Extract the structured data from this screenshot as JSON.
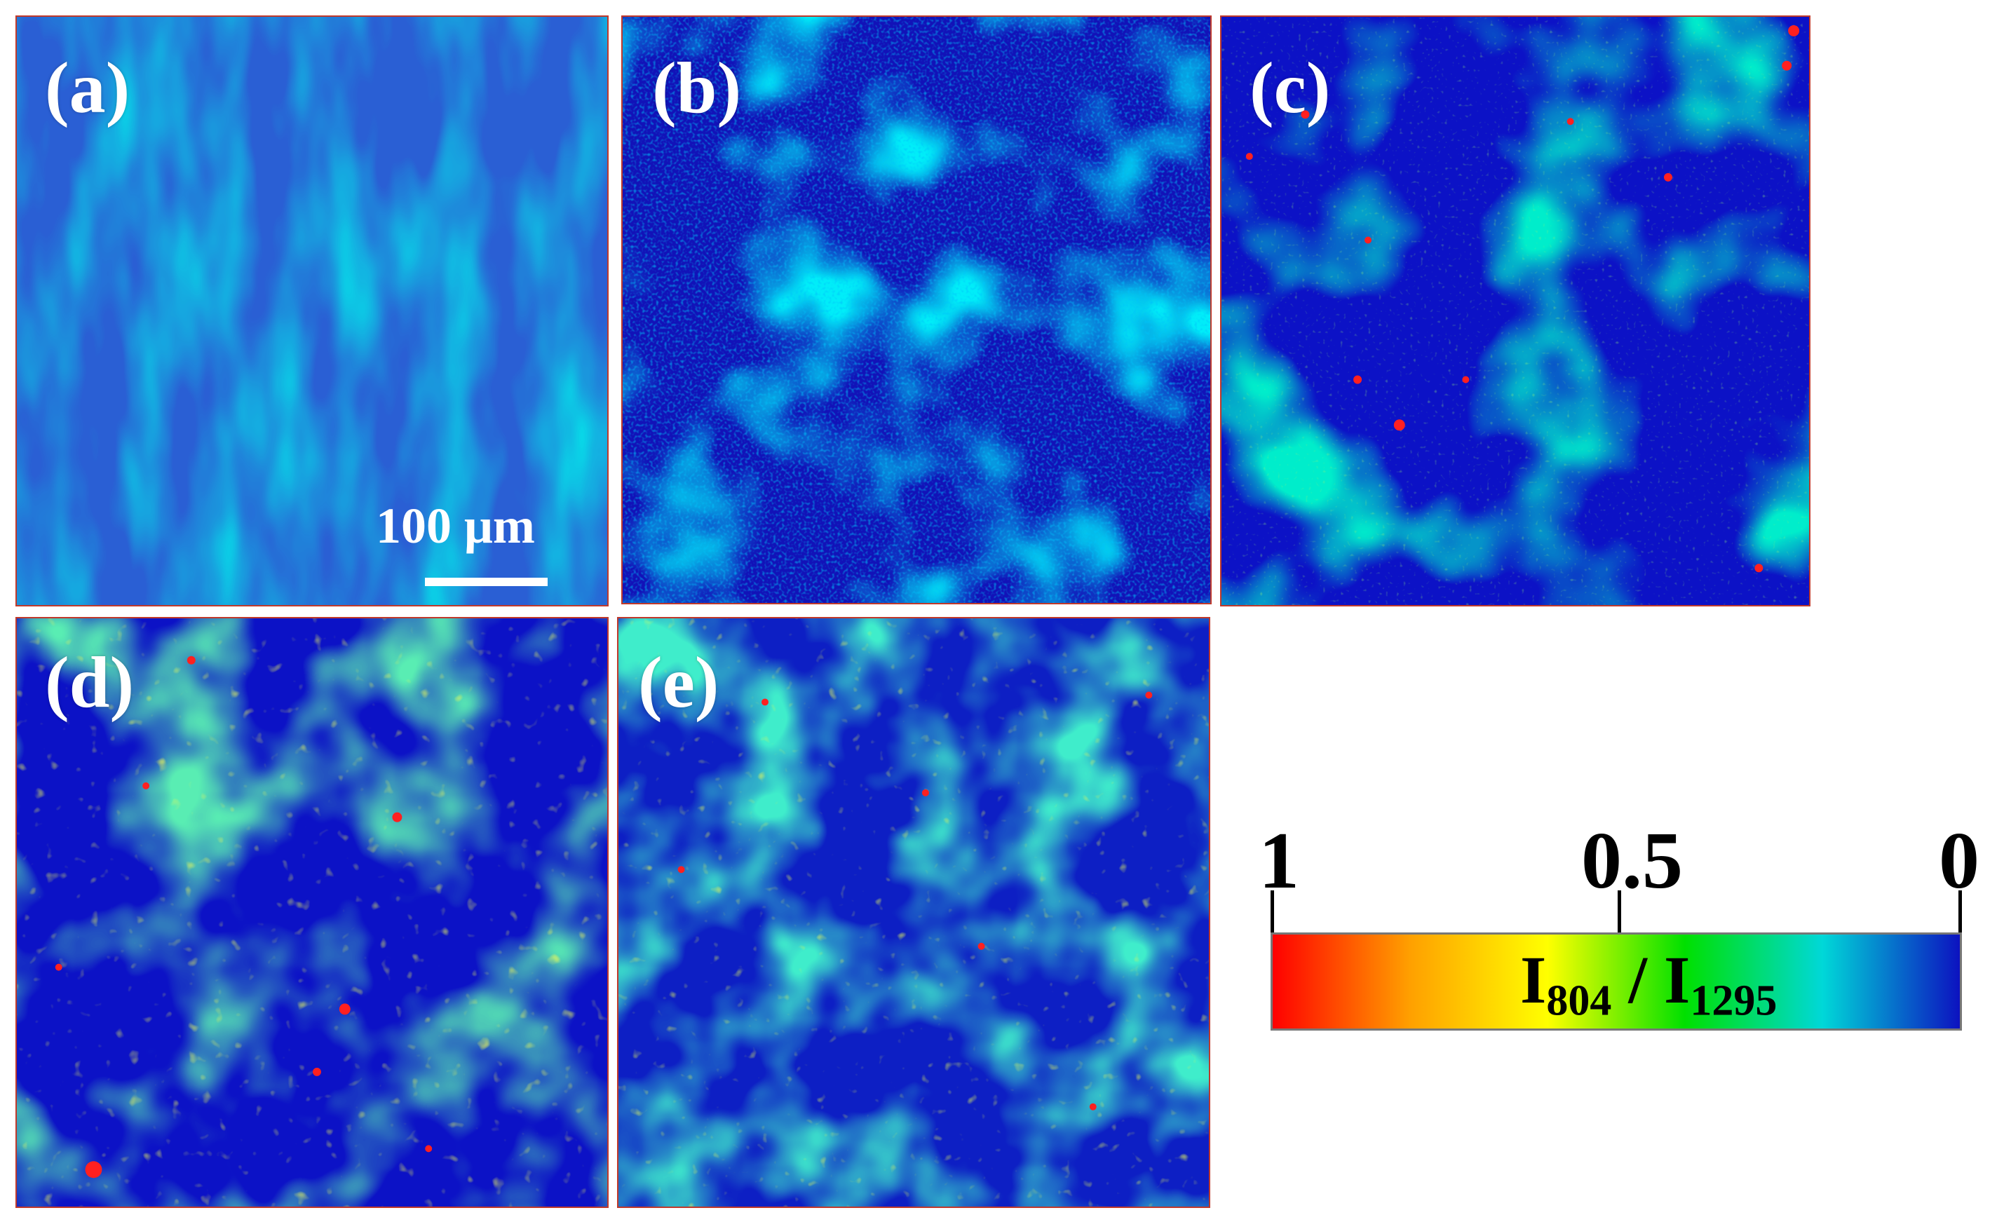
{
  "panels": [
    {
      "label": "(a)",
      "base": "#2a5fd4",
      "style": "smooth"
    },
    {
      "label": "(b)",
      "base": "#1212b8",
      "style": "noisy"
    },
    {
      "label": "(c)",
      "base": "#0c12c6",
      "style": "blobs"
    },
    {
      "label": "(d)",
      "base": "#0c12c6",
      "style": "dense"
    },
    {
      "label": "(e)",
      "base": "#0d1fc4",
      "style": "dense"
    }
  ],
  "scale_bar": {
    "label": "100 μm"
  },
  "colorbar": {
    "tick_left": "1",
    "tick_mid": "0.5",
    "tick_right": "0",
    "title_main": "I",
    "title_sub1": "804",
    "title_sep": " / I",
    "title_sub2": "1295",
    "colors": [
      "#ff0000",
      "#ffa000",
      "#ffff00",
      "#00e000",
      "#00d8d8",
      "#0c12c0"
    ]
  }
}
